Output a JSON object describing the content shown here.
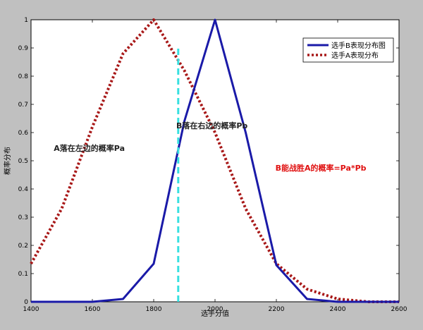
{
  "chart_data": {
    "type": "line",
    "title": "",
    "xlabel": "选手分值",
    "ylabel": "概率分布",
    "xlim": [
      1400,
      2600
    ],
    "ylim": [
      0,
      1
    ],
    "xticks": [
      "1400",
      "1600",
      "1800",
      "2000",
      "2200",
      "2400",
      "2600"
    ],
    "yticks": [
      "0",
      "0.1",
      "0.2",
      "0.3",
      "0.4",
      "0.5",
      "0.6",
      "0.7",
      "0.8",
      "0.9",
      "1"
    ],
    "grid": false,
    "legend": "top-right",
    "series": [
      {
        "name": "选手B表现分布图",
        "color": "#1a1aa8",
        "style": "solid",
        "x": [
          1400,
          1500,
          1600,
          1700,
          1800,
          1900,
          2000,
          2100,
          2200,
          2300,
          2400,
          2500,
          2600
        ],
        "y": [
          0,
          0,
          0,
          0.01,
          0.135,
          0.64,
          1,
          0.6,
          0.13,
          0.01,
          0,
          0,
          0
        ]
      },
      {
        "name": "选手A表现分布",
        "color": "#a81818",
        "style": "dotted",
        "x": [
          1400,
          1500,
          1600,
          1700,
          1800,
          1900,
          2000,
          2100,
          2200,
          2300,
          2400,
          2500,
          2600
        ],
        "y": [
          0.135,
          0.33,
          0.62,
          0.88,
          1,
          0.82,
          0.6,
          0.33,
          0.135,
          0.045,
          0.01,
          0,
          0
        ]
      }
    ],
    "marker_line": {
      "x": 1880,
      "color": "#38e0e0",
      "style": "dashed"
    },
    "annotations": [
      {
        "text": "A落在左边的概率Pa",
        "x": 1590,
        "y": 0.535,
        "color": "#222222"
      },
      {
        "text": "B落在右边的概率Pb",
        "x": 1990,
        "y": 0.615,
        "color": "#222222"
      },
      {
        "text": "B能战胜A的概率=Pa*Pb",
        "x": 2345,
        "y": 0.465,
        "color": "#e01010"
      }
    ]
  }
}
